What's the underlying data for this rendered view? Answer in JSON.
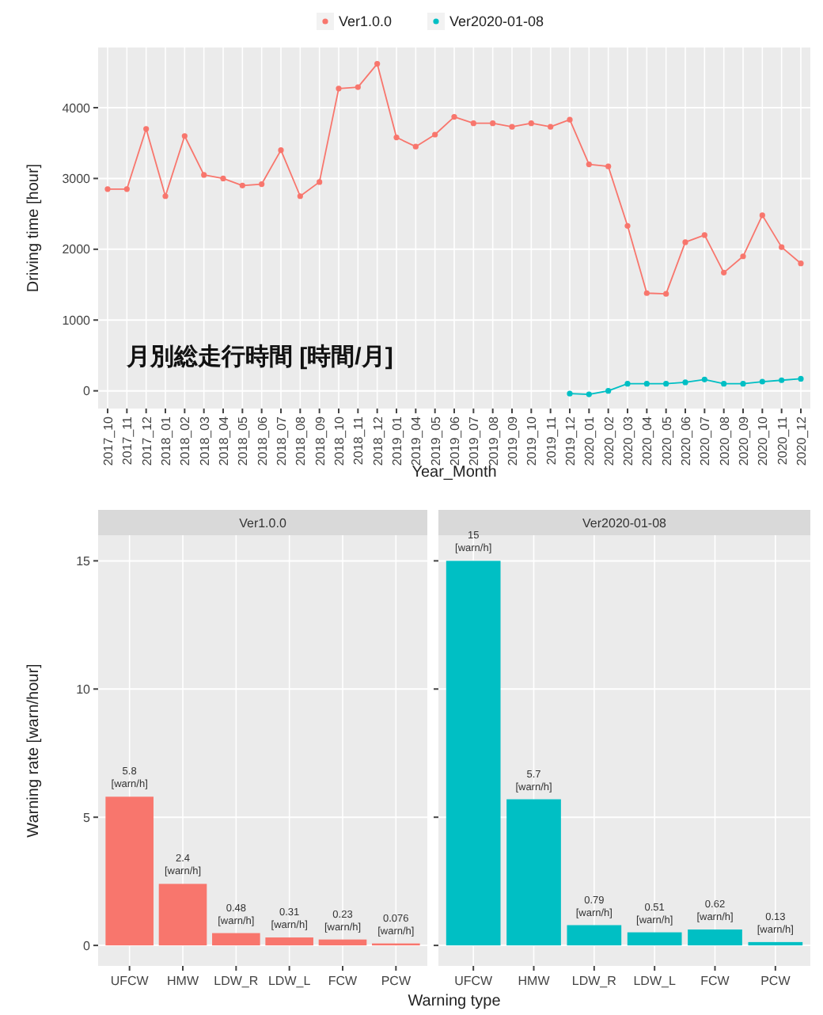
{
  "chart_data": [
    {
      "type": "line",
      "xlabel": "Year_Month",
      "ylabel": "Driving time [hour]",
      "categories": [
        "2017_10",
        "2017_11",
        "2017_12",
        "2018_01",
        "2018_02",
        "2018_03",
        "2018_04",
        "2018_05",
        "2018_06",
        "2018_07",
        "2018_08",
        "2018_09",
        "2018_10",
        "2018_11",
        "2018_12",
        "2019_01",
        "2019_04",
        "2019_05",
        "2019_06",
        "2019_07",
        "2019_08",
        "2019_09",
        "2019_10",
        "2019_11",
        "2019_12",
        "2020_01",
        "2020_02",
        "2020_03",
        "2020_04",
        "2020_05",
        "2020_06",
        "2020_07",
        "2020_08",
        "2020_09",
        "2020_10",
        "2020_11",
        "2020_12"
      ],
      "series": [
        {
          "name": "Ver1.0.0",
          "color": "#f8766d",
          "values": [
            2850,
            2850,
            3700,
            2750,
            3600,
            3050,
            3000,
            2900,
            2920,
            3400,
            2750,
            2950,
            4270,
            4290,
            4620,
            3580,
            3450,
            3620,
            3870,
            3780,
            3780,
            3730,
            3780,
            3730,
            3830,
            3200,
            3170,
            2330,
            1380,
            1370,
            2100,
            2200,
            1670,
            1900,
            2480,
            2030,
            1800
          ]
        },
        {
          "name": "Ver2020-01-08",
          "color": "#00bfc4",
          "values": [
            null,
            null,
            null,
            null,
            null,
            null,
            null,
            null,
            null,
            null,
            null,
            null,
            null,
            null,
            null,
            null,
            null,
            null,
            null,
            null,
            null,
            null,
            null,
            null,
            -40,
            -50,
            0,
            100,
            100,
            100,
            120,
            160,
            100,
            100,
            130,
            150,
            170
          ]
        }
      ],
      "ylim": [
        -250,
        4850
      ],
      "yticks": [
        0,
        1000,
        2000,
        3000,
        4000
      ],
      "grid": true,
      "legend": "top",
      "marker": "circle",
      "annotations": [
        "月別総走行時間 [時間/月]"
      ]
    },
    {
      "type": "bar",
      "title": "Ver1.0.0",
      "ylabel": "Warning rate [warn/hour]",
      "xlabel": "Warning type",
      "categories": [
        "UFCW",
        "HMW",
        "LDW_R",
        "LDW_L",
        "FCW",
        "PCW"
      ],
      "values": [
        5.8,
        2.4,
        0.48,
        0.31,
        0.23,
        0.076
      ],
      "color": "#f8766d",
      "value_labels": [
        "5.8\n[warn/h]",
        "2.4\n[warn/h]",
        "0.48\n[warn/h]",
        "0.31\n[warn/h]",
        "0.23\n[warn/h]",
        "0.076\n[warn/h]"
      ],
      "ylim": [
        -0.8,
        16
      ],
      "yticks": [
        0,
        5,
        10,
        15
      ],
      "grid": true
    },
    {
      "type": "bar",
      "title": "Ver2020-01-08",
      "categories": [
        "UFCW",
        "HMW",
        "LDW_R",
        "LDW_L",
        "FCW",
        "PCW"
      ],
      "values": [
        15,
        5.7,
        0.79,
        0.51,
        0.62,
        0.13
      ],
      "color": "#00bfc4",
      "value_labels": [
        "15\n[warn/h]",
        "5.7\n[warn/h]",
        "0.79\n[warn/h]",
        "0.51\n[warn/h]",
        "0.62\n[warn/h]",
        "0.13\n[warn/h]"
      ],
      "ylim": [
        -0.8,
        16
      ],
      "yticks": [
        0,
        5,
        10,
        15
      ],
      "grid": true,
      "tick_labels": "x"
    }
  ]
}
